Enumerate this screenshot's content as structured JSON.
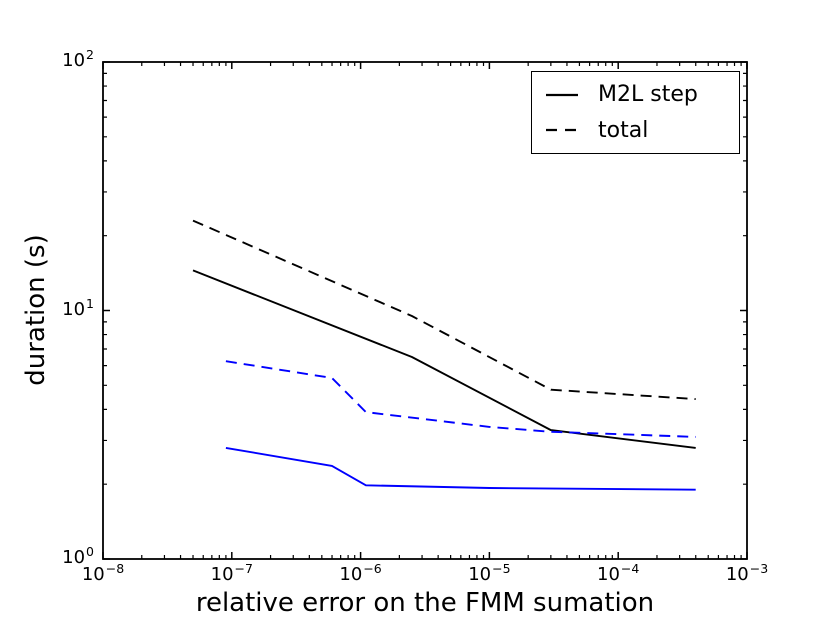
{
  "figure": {
    "background": "#ffffff",
    "axes_color": "#000000"
  },
  "chart_data": {
    "type": "line",
    "title": "",
    "xlabel": "relative error on the FMM sumation",
    "ylabel": "duration (s)",
    "x_scale": "log",
    "y_scale": "log",
    "xlim": [
      1e-08,
      0.001
    ],
    "ylim": [
      1,
      100
    ],
    "x_tick_exponents": [
      -8,
      -7,
      -6,
      -5,
      -4,
      -3
    ],
    "y_tick_exponents": [
      0,
      1,
      2
    ],
    "grid": false,
    "legend_position": "upper right",
    "legend_entries": [
      {
        "label": "M2L step",
        "line_style": "solid",
        "color": "#000000"
      },
      {
        "label": "total",
        "line_style": "dashed",
        "color": "#000000"
      }
    ],
    "series": [
      {
        "id": "m2l-step-black",
        "legend": "M2L step",
        "color": "#000000",
        "line_style": "solid",
        "points": [
          [
            5e-08,
            14.5
          ],
          [
            2.5e-06,
            6.5
          ],
          [
            3e-05,
            3.3
          ],
          [
            0.0004,
            2.8
          ]
        ]
      },
      {
        "id": "total-black",
        "legend": "total",
        "color": "#000000",
        "line_style": "dashed",
        "points": [
          [
            5e-08,
            23.0
          ],
          [
            2.5e-06,
            9.5
          ],
          [
            3e-05,
            4.8
          ],
          [
            0.0004,
            4.4
          ]
        ]
      },
      {
        "id": "m2l-step-blue",
        "legend": null,
        "color": "#0000ff",
        "line_style": "solid",
        "points": [
          [
            9e-08,
            2.8
          ],
          [
            6e-07,
            2.37
          ],
          [
            1.1e-06,
            1.98
          ],
          [
            1e-05,
            1.93
          ],
          [
            0.0004,
            1.9
          ]
        ]
      },
      {
        "id": "total-blue",
        "legend": null,
        "color": "#0000ff",
        "line_style": "dashed",
        "points": [
          [
            9e-08,
            6.25
          ],
          [
            6e-07,
            5.35
          ],
          [
            1.1e-06,
            3.9
          ],
          [
            1e-05,
            3.4
          ],
          [
            3e-05,
            3.25
          ],
          [
            0.0004,
            3.1
          ]
        ]
      }
    ]
  }
}
